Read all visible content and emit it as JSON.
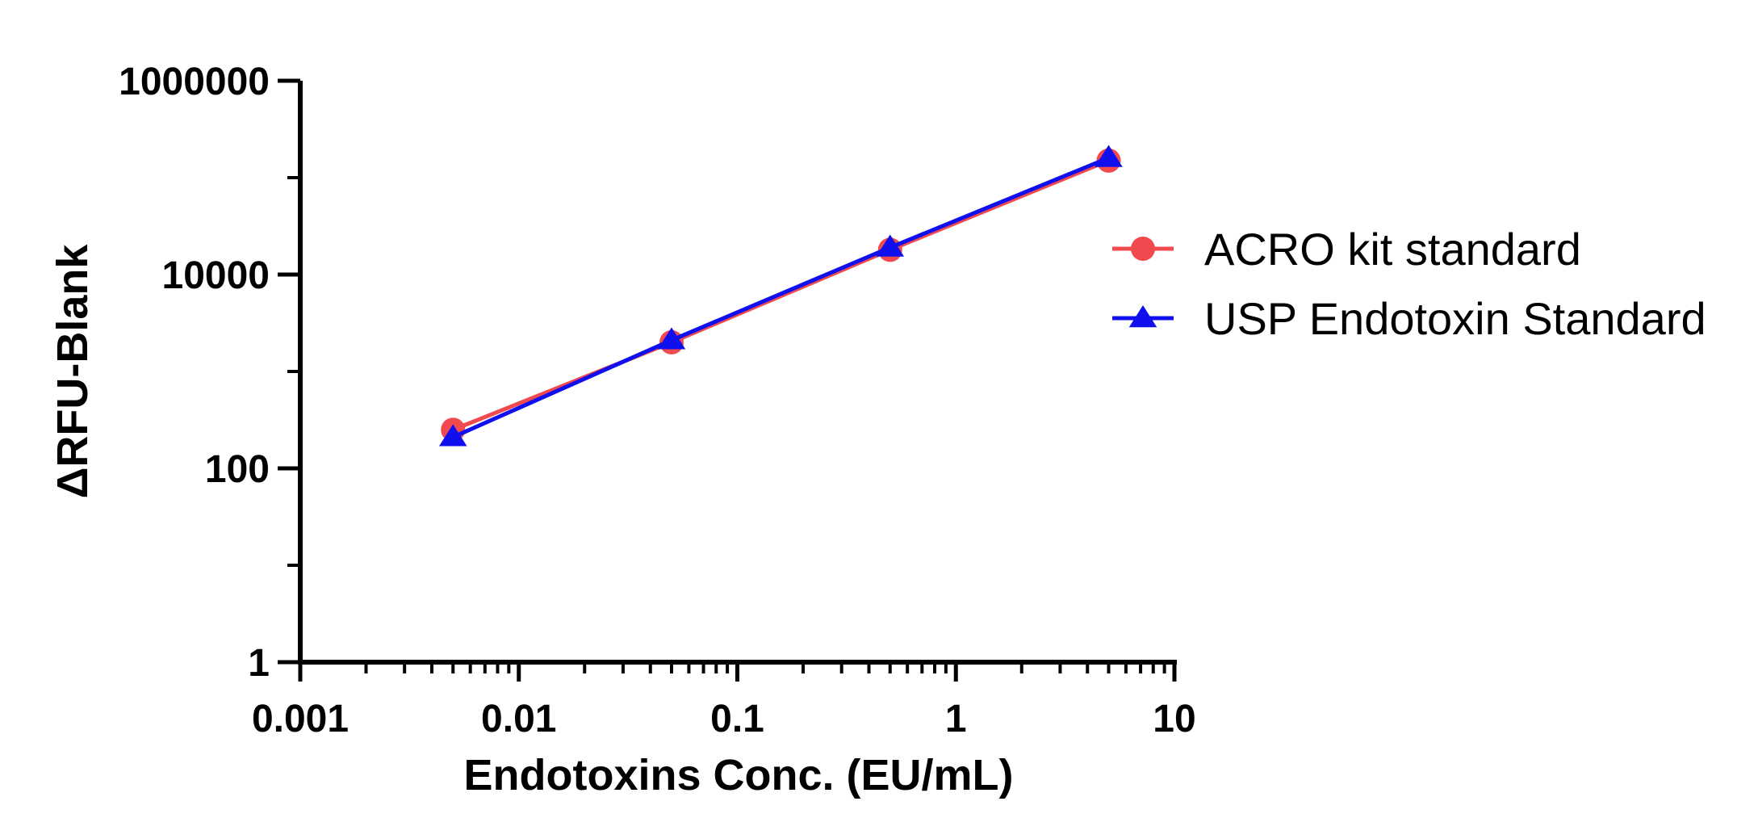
{
  "chart_data": {
    "type": "line",
    "xlabel": "Endotoxins Conc. (EU/mL)",
    "ylabel": "ΔRFU-Blank",
    "xscale": "log",
    "yscale": "log",
    "xlim": [
      0.001,
      10
    ],
    "ylim": [
      1,
      1000000
    ],
    "xticks": [
      0.001,
      0.01,
      0.1,
      1,
      10
    ],
    "xtick_labels": [
      "0.001",
      "0.01",
      "0.1",
      "1",
      "10"
    ],
    "yticks": [
      1,
      100,
      10000,
      1000000
    ],
    "ytick_labels": [
      "1",
      "100",
      "10000",
      "1000000"
    ],
    "grid": false,
    "legend": "right",
    "series": [
      {
        "name": "ACRO kit standard",
        "marker": "circle",
        "color": "#f04a4f",
        "x": [
          0.005,
          0.05,
          0.5,
          5
        ],
        "y": [
          250,
          2000,
          18000,
          150000
        ]
      },
      {
        "name": "USP Endotoxin Standard",
        "marker": "triangle",
        "color": "#1010ee",
        "x": [
          0.005,
          0.05,
          0.5,
          5
        ],
        "y": [
          210,
          2100,
          19000,
          160000
        ]
      }
    ]
  }
}
